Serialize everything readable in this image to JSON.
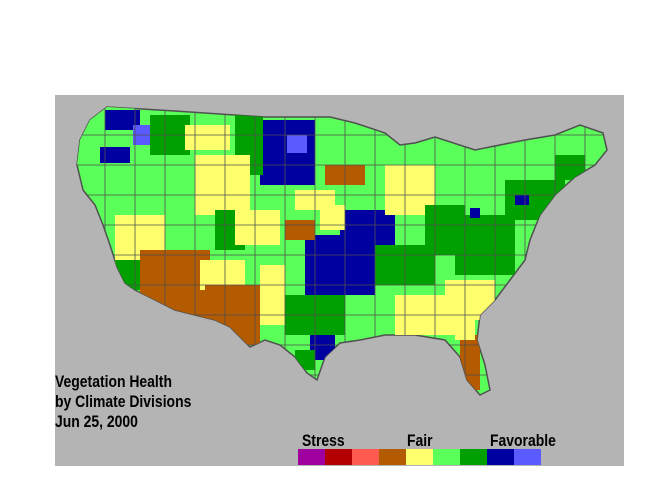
{
  "caption": {
    "line1": "Vegetation Health",
    "line2": "by Climate Divisions",
    "date": "Jun 25, 2000"
  },
  "legend": {
    "stress_label": "Stress",
    "fair_label": "Fair",
    "favorable_label": "Favorable",
    "colors": [
      "#a000a0",
      "#b40000",
      "#ff5a50",
      "#b45a00",
      "#ffff6e",
      "#5aff5a",
      "#00a000",
      "#0000a0",
      "#5a5aff"
    ]
  },
  "colors": {
    "background": "#b4b4b4",
    "borders": "#505050"
  }
}
